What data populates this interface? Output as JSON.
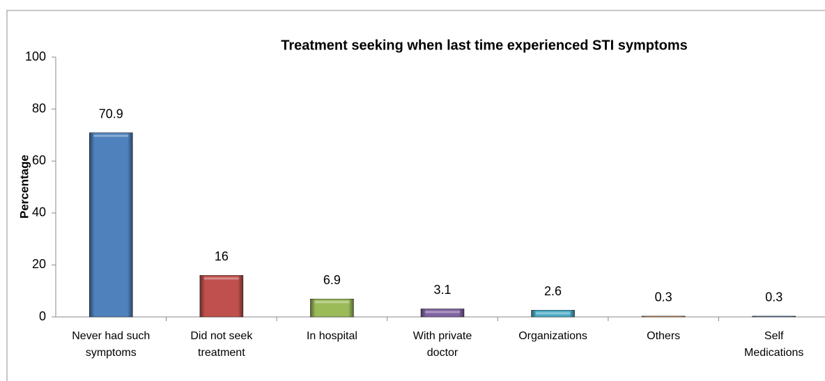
{
  "chart_data": {
    "type": "bar",
    "title": "Treatment seeking when last time experienced STI symptoms",
    "y_label": "Percentage",
    "categories": [
      "Never had such symptoms",
      "Did not seek treatment",
      "In hospital",
      "With private doctor",
      "Organizations",
      "Others",
      "Self Medications"
    ],
    "values": [
      70.9,
      16,
      6.9,
      3.1,
      2.6,
      0.3,
      0.3
    ],
    "colors": [
      "#4f81bd",
      "#c0504d",
      "#9bbb59",
      "#8064a2",
      "#4bacc6",
      "#f79646",
      "#4f81bd"
    ],
    "ylim": [
      0,
      100
    ],
    "yticks": [
      0,
      20,
      40,
      60,
      80,
      100
    ],
    "grid": false
  }
}
